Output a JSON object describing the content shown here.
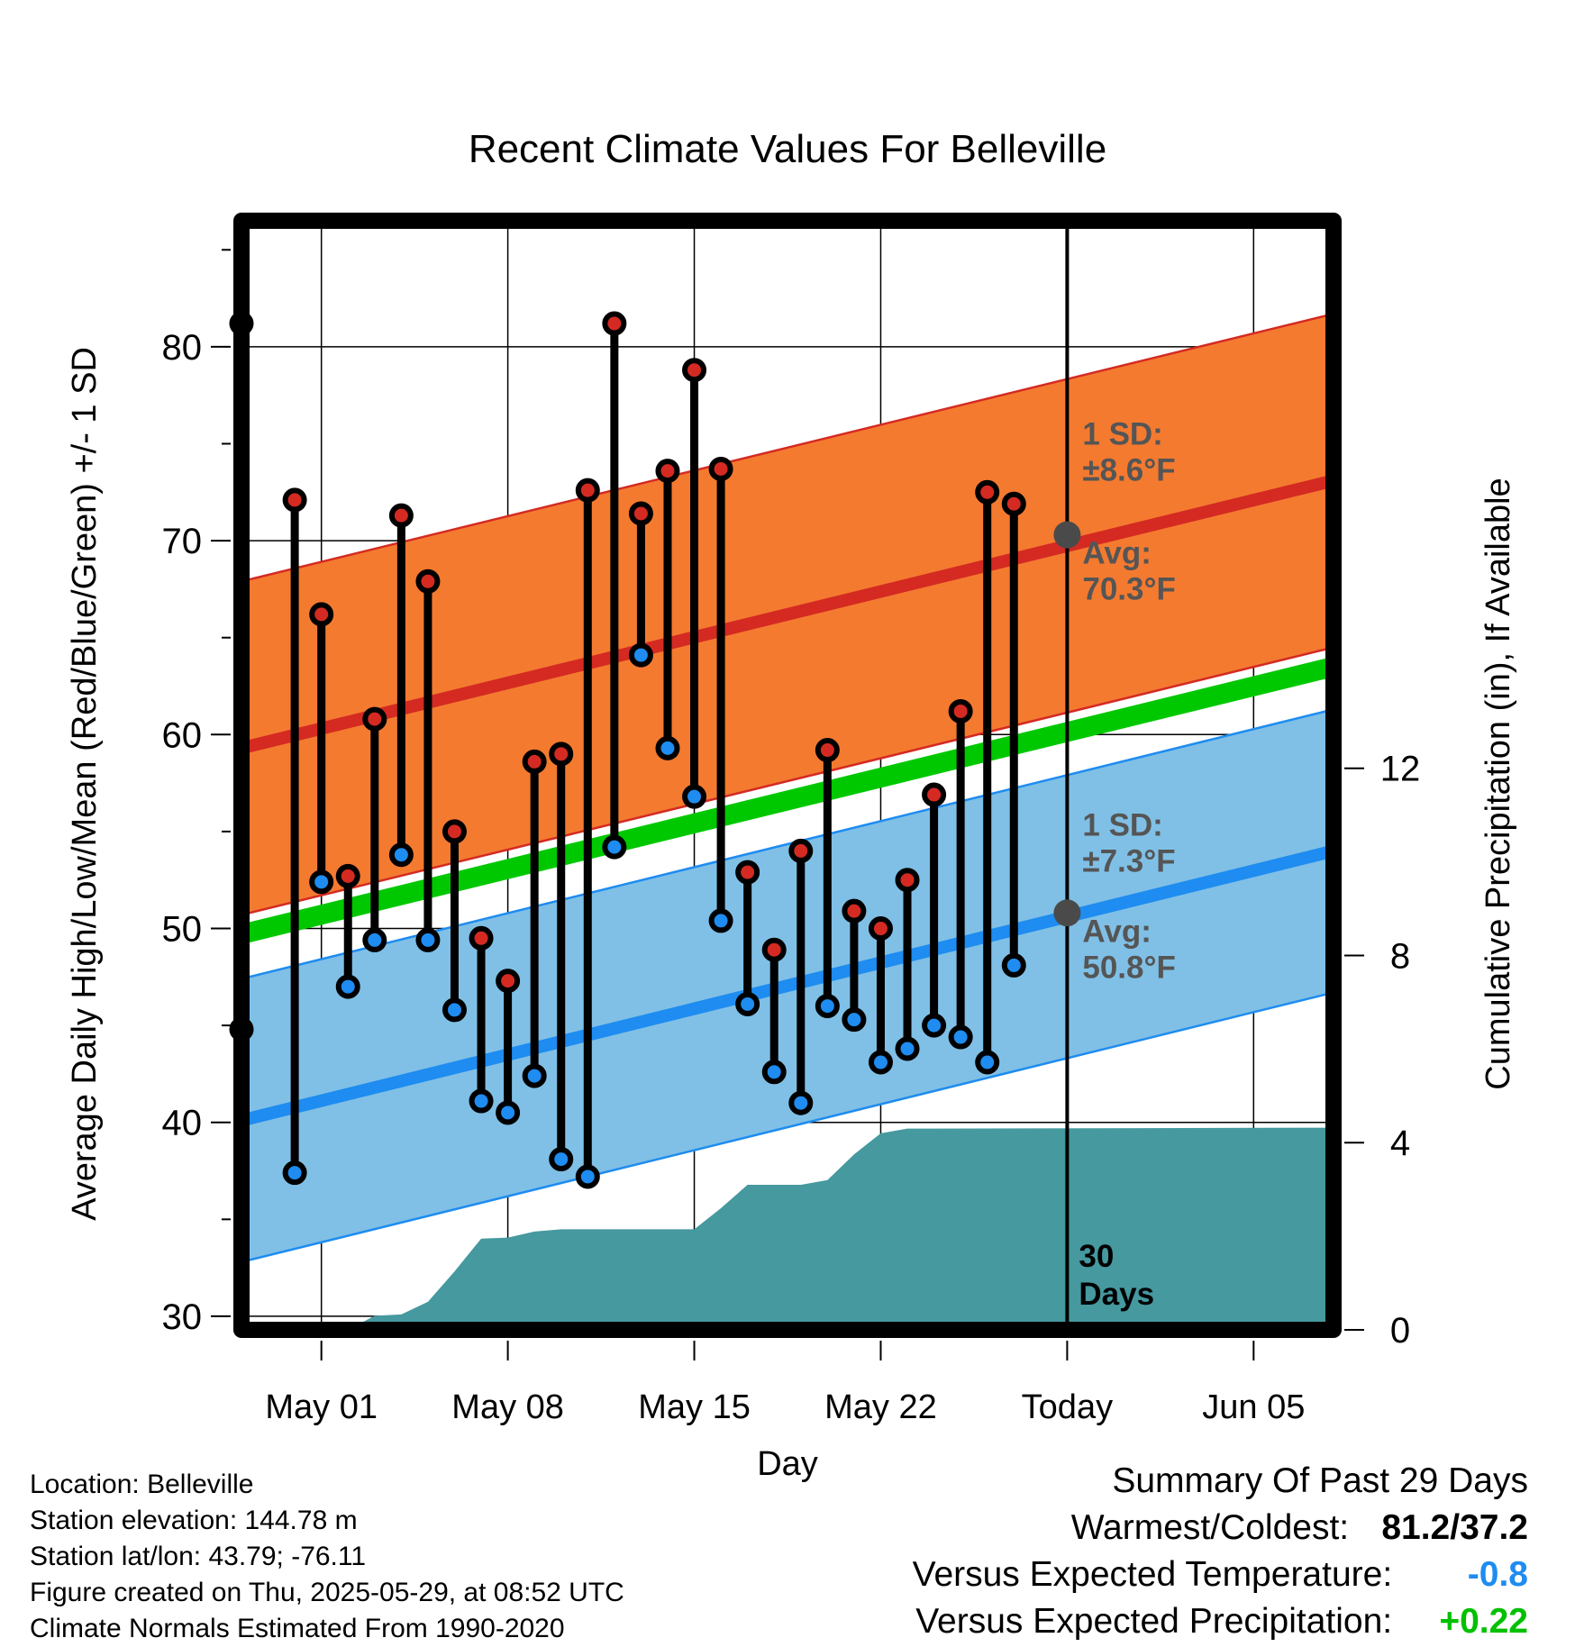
{
  "chart_data": {
    "type": "line",
    "title": "Recent Climate Values For Belleville",
    "xlabel": "Day",
    "ylabel": "Average Daily High/Low/Mean (Red/Blue/Green) +/- 1 SD",
    "y2label": "Cumulative Precipitation (in), If Available",
    "x_tick_labels": [
      "May 01",
      "May 08",
      "May 15",
      "May 22",
      "Today",
      "Jun 05"
    ],
    "x_tick_days": [
      2,
      9,
      16,
      23,
      30,
      37
    ],
    "ylim": [
      29.3,
      86.5
    ],
    "y_ticks": [
      30,
      40,
      50,
      60,
      70,
      80
    ],
    "y2lim": [
      0,
      23.7
    ],
    "y2_ticks": [
      0,
      4,
      8,
      12
    ],
    "x_range": [
      -1,
      40
    ],
    "today_day": 30,
    "series": [
      {
        "name": "Observed High",
        "day": [
          -1,
          1,
          2,
          3,
          4,
          5,
          6,
          7,
          8,
          9,
          10,
          11,
          12,
          13,
          14,
          15,
          16,
          17,
          18,
          19,
          20,
          21,
          22,
          23,
          24,
          25,
          26,
          27,
          28
        ],
        "values": [
          81.2,
          72.1,
          66.2,
          52.7,
          60.8,
          71.3,
          67.9,
          55.0,
          49.5,
          47.3,
          58.6,
          59.0,
          72.6,
          81.2,
          71.4,
          73.6,
          78.8,
          73.7,
          52.9,
          48.9,
          54.0,
          59.2,
          50.9,
          50.0,
          52.5,
          56.9,
          61.2,
          72.5,
          71.9
        ]
      },
      {
        "name": "Observed Low",
        "day": [
          -1,
          1,
          2,
          3,
          4,
          5,
          6,
          7,
          8,
          9,
          10,
          11,
          12,
          13,
          14,
          15,
          16,
          17,
          18,
          19,
          20,
          21,
          22,
          23,
          24,
          25,
          26,
          27,
          28
        ],
        "values": [
          44.8,
          37.4,
          52.4,
          47.0,
          49.4,
          53.8,
          49.4,
          45.8,
          41.1,
          40.5,
          42.4,
          38.1,
          37.2,
          54.2,
          64.1,
          59.3,
          56.8,
          50.4,
          46.1,
          42.6,
          41.0,
          46.0,
          45.3,
          43.1,
          43.8,
          45.0,
          44.4,
          43.1,
          48.1
        ]
      },
      {
        "name": "Normal High",
        "day": [
          -1,
          40
        ],
        "values": [
          59.3,
          73.1
        ],
        "sd": 8.6
      },
      {
        "name": "Normal Low",
        "day": [
          -1,
          40
        ],
        "values": [
          40.1,
          54.0
        ],
        "sd": 7.3
      },
      {
        "name": "Normal Mean",
        "day": [
          -1,
          40
        ],
        "values": [
          49.7,
          63.5
        ]
      },
      {
        "name": "Cumulative Precipitation",
        "day": [
          -1,
          3,
          4,
          5,
          6,
          7,
          8,
          9,
          10,
          11,
          12,
          13,
          14,
          15,
          16,
          17,
          18,
          19,
          20,
          21,
          22,
          23,
          24,
          25,
          40
        ],
        "values": [
          0.0,
          0.0,
          0.3,
          0.33,
          0.6,
          1.25,
          1.95,
          1.97,
          2.1,
          2.15,
          2.15,
          2.15,
          2.15,
          2.15,
          2.15,
          2.6,
          3.1,
          3.1,
          3.1,
          3.2,
          3.75,
          4.2,
          4.3,
          4.3,
          4.32
        ]
      }
    ],
    "annotations": {
      "high_sd": [
        "1 SD:",
        "±8.6°F"
      ],
      "high_avg": [
        "Avg:",
        "70.3°F"
      ],
      "low_sd": [
        "1 SD:",
        "±7.3°F"
      ],
      "low_avg": [
        "Avg:",
        "50.8°F"
      ],
      "today_high_avg": 70.3,
      "today_low_avg": 50.8,
      "window": [
        "30",
        "Days"
      ]
    },
    "colors": {
      "high_band": "#f47a30",
      "high_line": "#d42a22",
      "low_band": "#80c0e6",
      "low_line": "#1e8cf0",
      "mean_line": "#00c800",
      "precip": "#45999f",
      "high_marker": "#d42a22",
      "low_marker": "#1e8cf0",
      "annotation_text": "#555555"
    }
  },
  "metadata_lines": [
    "Location: Belleville",
    "Station elevation: 144.78 m",
    "Station lat/lon: 43.79; -76.11",
    "Figure created on Thu, 2025-05-29, at 08:52 UTC",
    "Climate Normals Estimated From 1990-2020"
  ],
  "summary": {
    "title": "Summary Of Past 29 Days",
    "warmest_coldest_label": "Warmest/Coldest:",
    "warmest_coldest_value": "81.2/37.2",
    "temp_label": "Versus Expected Temperature:",
    "temp_value": "-0.8",
    "temp_color": "#1e8cf0",
    "precip_label": "Versus Expected Precipitation:",
    "precip_value": "+0.22",
    "precip_color": "#00c000"
  }
}
